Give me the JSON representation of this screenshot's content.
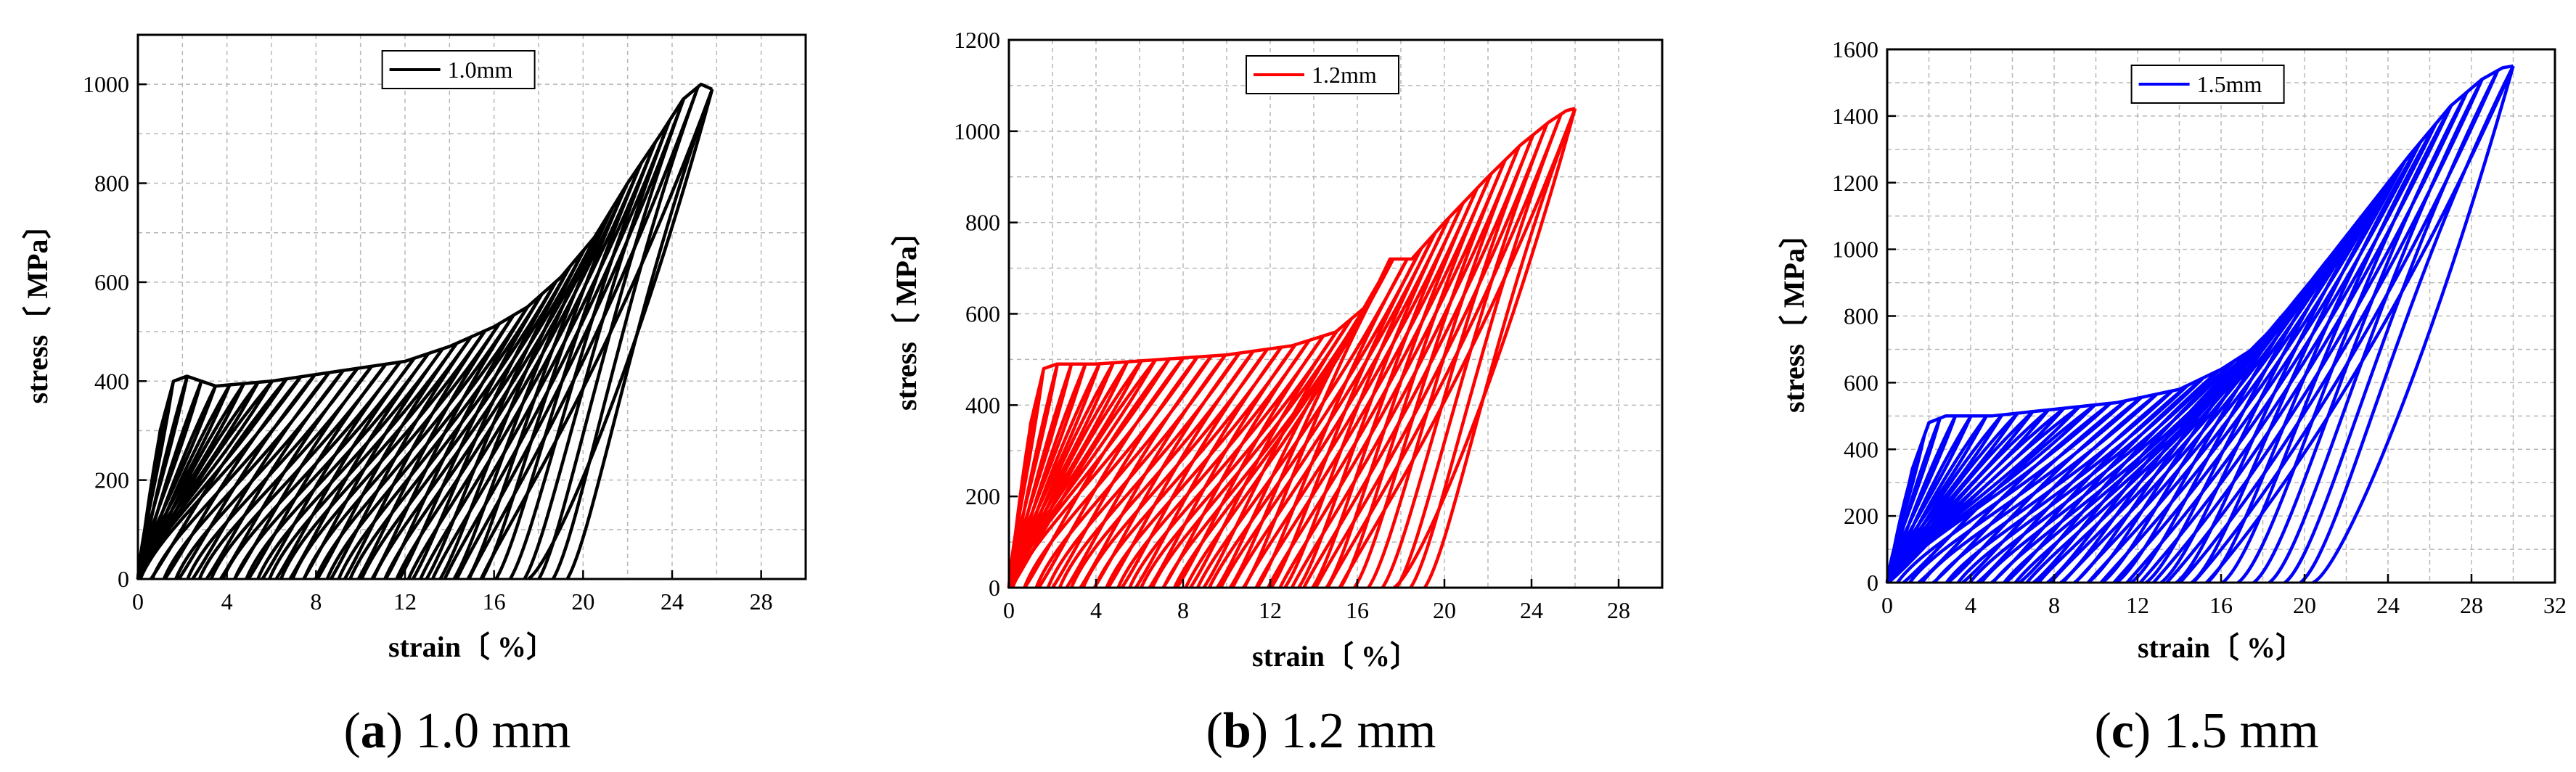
{
  "figure": {
    "type": "Figure",
    "note": "three stress-strain panels"
  },
  "chart_data": [
    {
      "type": "line",
      "caption_letter": "a",
      "caption_rest": "1.0 mm",
      "color": "#000000",
      "legend": "1.0mm",
      "legend_position": "top-center",
      "xlabel": "strain〔 %〕",
      "ylabel": "stress〔 MPa〕",
      "xlim": [
        0,
        30
      ],
      "ylim": [
        0,
        1100
      ],
      "xticks": [
        0,
        4,
        8,
        12,
        16,
        20,
        24,
        28
      ],
      "yticks": [
        0,
        200,
        400,
        600,
        800,
        1000
      ],
      "grid": true,
      "envelope": {
        "x": [
          0,
          0.5,
          1.0,
          1.6,
          2.2,
          3.5,
          6,
          9,
          12,
          14,
          16,
          17.5,
          19,
          20.5,
          22,
          23.5,
          24.5,
          25.3,
          25.8
        ],
        "y": [
          0,
          150,
          300,
          400,
          410,
          390,
          400,
          420,
          440,
          470,
          510,
          550,
          610,
          690,
          800,
          900,
          970,
          1000,
          990
        ]
      },
      "num_cycles": 40,
      "peak_stress": 1000,
      "max_strain": 26
    },
    {
      "type": "line",
      "caption_letter": "b",
      "caption_rest": "1.2 mm",
      "color": "#ff0000",
      "legend": "1.2mm",
      "legend_position": "top-center",
      "xlabel": "strain〔 %〕",
      "ylabel": "stress〔 MPa〕",
      "xlim": [
        0,
        30
      ],
      "ylim": [
        0,
        1200
      ],
      "xticks": [
        0,
        4,
        8,
        12,
        16,
        20,
        24,
        28
      ],
      "yticks": [
        0,
        200,
        400,
        600,
        800,
        1000,
        1200
      ],
      "grid": true,
      "envelope": {
        "x": [
          0,
          0.5,
          1.0,
          1.6,
          2.2,
          4,
          7,
          10,
          13,
          15,
          16.5,
          17.5,
          18.5,
          20,
          22,
          23.5,
          24.8,
          25.6,
          26
        ],
        "y": [
          0,
          180,
          360,
          480,
          490,
          490,
          500,
          510,
          530,
          560,
          620,
          720,
          720,
          800,
          900,
          970,
          1020,
          1045,
          1050
        ]
      },
      "num_cycles": 40,
      "peak_stress": 1050,
      "max_strain": 26
    },
    {
      "type": "line",
      "caption_letter": "c",
      "caption_rest": "1.5 mm",
      "color": "#0000ff",
      "legend": "1.5mm",
      "legend_position": "top-center",
      "xlabel": "strain〔 %〕",
      "ylabel": "stress〔 MPa〕",
      "xlim": [
        0,
        32
      ],
      "ylim": [
        0,
        1600
      ],
      "xticks": [
        0,
        4,
        8,
        12,
        16,
        20,
        24,
        28,
        32
      ],
      "yticks": [
        0,
        200,
        400,
        600,
        800,
        1000,
        1200,
        1400,
        1600
      ],
      "grid": true,
      "envelope": {
        "x": [
          0,
          0.6,
          1.2,
          2.0,
          2.8,
          5,
          8,
          11,
          14,
          16,
          17.5,
          19,
          21,
          23,
          25,
          27,
          28.5,
          29.5,
          30
        ],
        "y": [
          0,
          170,
          340,
          480,
          500,
          500,
          520,
          540,
          580,
          640,
          700,
          800,
          960,
          1120,
          1280,
          1430,
          1510,
          1545,
          1550
        ]
      },
      "num_cycles": 40,
      "peak_stress": 1550,
      "max_strain": 30
    }
  ]
}
